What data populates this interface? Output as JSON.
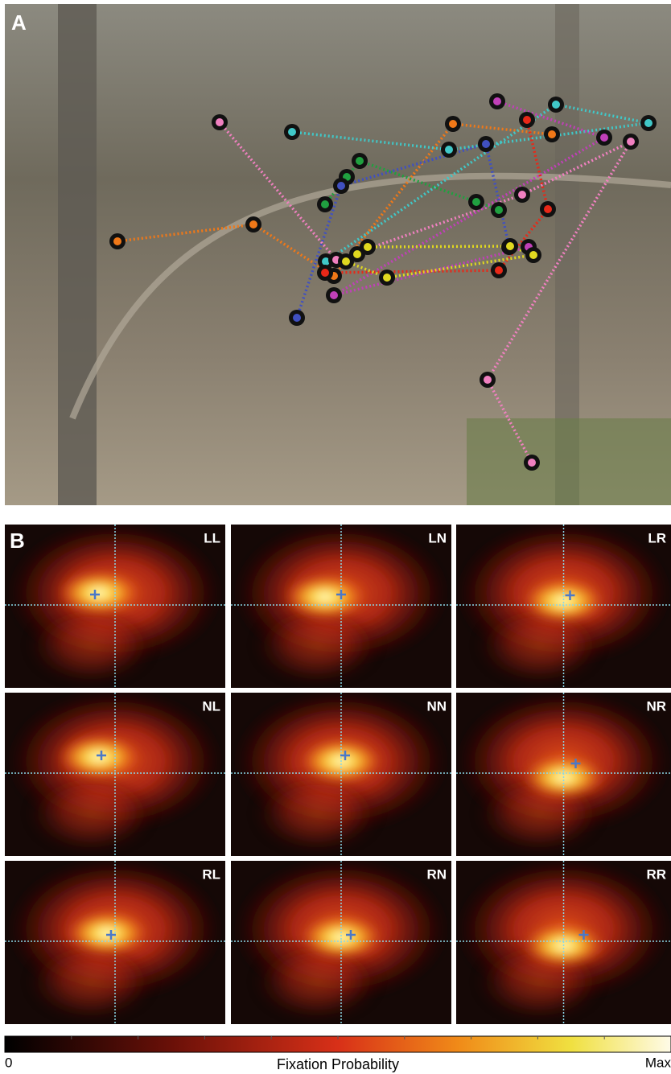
{
  "panel_a": {
    "label": "A"
  },
  "panel_b": {
    "label": "B",
    "maps": [
      "LL",
      "LN",
      "LR",
      "NL",
      "NN",
      "NR",
      "RL",
      "RN",
      "RR"
    ]
  },
  "colorbar": {
    "min_label": "0",
    "title": "Fixation Probability",
    "max_label": "Max"
  }
}
